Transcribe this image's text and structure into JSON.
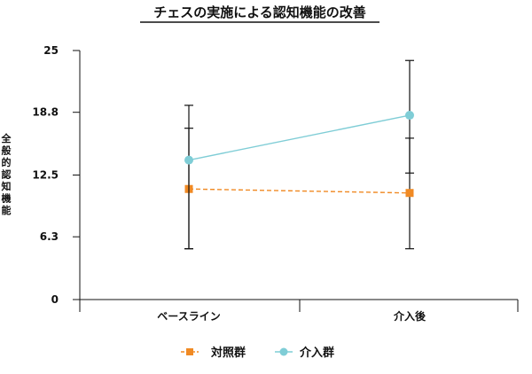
{
  "chart_data": {
    "type": "line",
    "title": "チェスの実施による認知機能の改善",
    "ylabel": "全般的認知機能",
    "xlabel": "",
    "categories": [
      "ベースライン",
      "介入後"
    ],
    "ylim": [
      0,
      25
    ],
    "yticks": [
      0,
      6.3,
      12.5,
      18.8,
      25
    ],
    "ytick_labels": [
      "0",
      "6.3",
      "12.5",
      "18.8",
      "25"
    ],
    "grid": false,
    "legend_position": "bottom-center",
    "series": [
      {
        "name": "対照群",
        "values": [
          11.1,
          10.7
        ],
        "error_low": [
          5.1,
          5.1
        ],
        "error_high": [
          17.2,
          16.2
        ],
        "color": "#f08a24",
        "marker": "square",
        "line_style": "dashed"
      },
      {
        "name": "介入群",
        "values": [
          14.0,
          18.5
        ],
        "error_low": [
          5.1,
          12.7
        ],
        "error_high": [
          19.5,
          24.0
        ],
        "color": "#7fcdd6",
        "marker": "circle",
        "line_style": "solid"
      }
    ]
  }
}
